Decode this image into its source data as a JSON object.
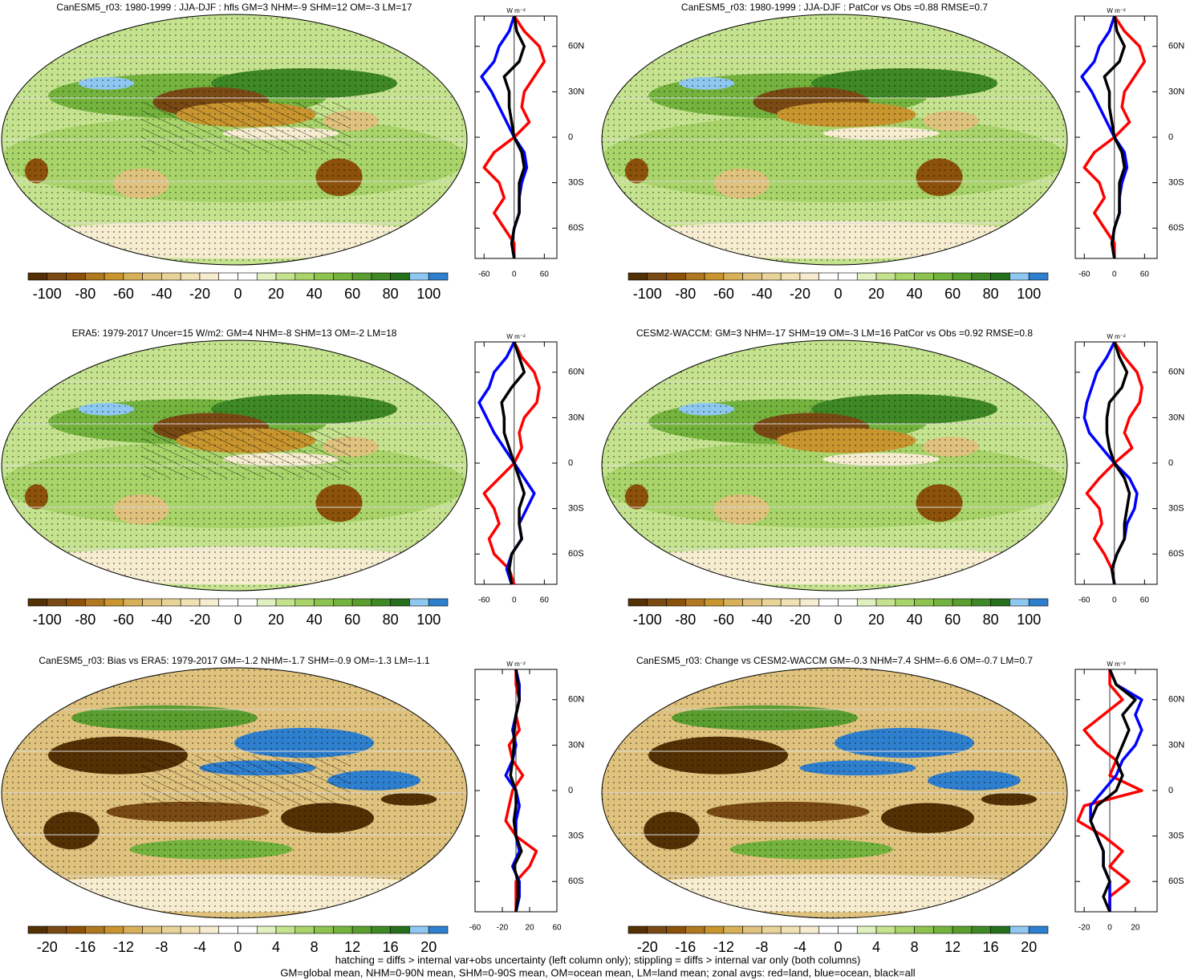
{
  "chart_data": [
    {
      "type": "line",
      "title": "CanESM5_r03: 1980-1999 : JJA-DJF : hfls GM=3 NHM=-9 SHM=12 OM=-3 LM=17",
      "x_label": "W m⁻²",
      "xlim": [
        -78,
        85
      ],
      "xticks": [
        -60,
        0,
        60
      ],
      "ylim": [
        -80,
        80
      ],
      "yticks": [
        {
          "value": 60,
          "label": "60N"
        },
        {
          "value": 30,
          "label": "30N"
        },
        0,
        {
          "value": -30,
          "label": "30S"
        },
        {
          "value": -60,
          "label": "60S"
        }
      ],
      "y": [
        -80,
        -70,
        -60,
        -50,
        -40,
        -30,
        -20,
        -10,
        0,
        10,
        20,
        30,
        40,
        50,
        60,
        70,
        80
      ],
      "series": [
        {
          "color": "#ff0000",
          "values": [
            0,
            0,
            -20,
            -40,
            -20,
            -30,
            -60,
            -40,
            0,
            30,
            15,
            20,
            40,
            60,
            50,
            20,
            0
          ]
        },
        {
          "color": "#0000ff",
          "values": [
            0,
            -5,
            0,
            10,
            10,
            15,
            25,
            20,
            0,
            -15,
            -30,
            -45,
            -65,
            -40,
            -30,
            -10,
            0
          ]
        },
        {
          "color": "#000000",
          "values": [
            0,
            -5,
            0,
            10,
            10,
            10,
            20,
            15,
            0,
            -5,
            -10,
            -10,
            -20,
            10,
            20,
            5,
            0
          ]
        }
      ],
      "colorbar": {
        "lim": [
          -110,
          110
        ],
        "ticks": [
          -100,
          -80,
          -60,
          -40,
          -20,
          0,
          20,
          40,
          60,
          80,
          100
        ],
        "colors": [
          "#543005",
          "#7a4a14",
          "#8c510a",
          "#b07820",
          "#c8952e",
          "#d8b05a",
          "#dfc27d",
          "#e8d498",
          "#f0e2b4",
          "#f6ecd0",
          "#ffffff",
          "#ffffff",
          "#e0f0c0",
          "#c5e38f",
          "#a8d46a",
          "#8dc450",
          "#74b33e",
          "#5a9e30",
          "#3f8826",
          "#26701e",
          "#8ec8f0",
          "#2f7fcf"
        ]
      }
    },
    {
      "type": "line",
      "title": "CanESM5_r03: 1980-1999 : JJA-DJF : PatCor vs Obs =0.88 RMSE=0.7",
      "x_label": "W m⁻²",
      "xlim": [
        -78,
        85
      ],
      "xticks": [
        -60,
        0,
        60
      ],
      "ylim": [
        -80,
        80
      ],
      "yticks": [
        {
          "value": 60,
          "label": "60N"
        },
        {
          "value": 30,
          "label": "30N"
        },
        0,
        {
          "value": -30,
          "label": "30S"
        },
        {
          "value": -60,
          "label": "60S"
        }
      ],
      "y": [
        -80,
        -70,
        -60,
        -50,
        -40,
        -30,
        -20,
        -10,
        0,
        10,
        20,
        30,
        40,
        50,
        60,
        70,
        80
      ],
      "series": [
        {
          "color": "#ff0000",
          "values": [
            0,
            0,
            -20,
            -40,
            -20,
            -30,
            -60,
            -40,
            0,
            30,
            15,
            20,
            40,
            60,
            50,
            20,
            0
          ]
        },
        {
          "color": "#0000ff",
          "values": [
            0,
            -5,
            0,
            10,
            10,
            15,
            25,
            20,
            0,
            -15,
            -30,
            -45,
            -65,
            -40,
            -30,
            -10,
            0
          ]
        },
        {
          "color": "#000000",
          "values": [
            0,
            -5,
            0,
            10,
            10,
            10,
            20,
            15,
            0,
            -5,
            -10,
            -10,
            -20,
            10,
            20,
            5,
            0
          ]
        }
      ],
      "colorbar": {
        "lim": [
          -110,
          110
        ],
        "ticks": [
          -100,
          -80,
          -60,
          -40,
          -20,
          0,
          20,
          40,
          60,
          80,
          100
        ],
        "colors": [
          "#543005",
          "#7a4a14",
          "#8c510a",
          "#b07820",
          "#c8952e",
          "#d8b05a",
          "#dfc27d",
          "#e8d498",
          "#f0e2b4",
          "#f6ecd0",
          "#ffffff",
          "#ffffff",
          "#e0f0c0",
          "#c5e38f",
          "#a8d46a",
          "#8dc450",
          "#74b33e",
          "#5a9e30",
          "#3f8826",
          "#26701e",
          "#8ec8f0",
          "#2f7fcf"
        ]
      }
    },
    {
      "type": "line",
      "title": "ERA5: 1979-2017 Uncer=15 W/m2: GM=4 NHM=-8 SHM=13 OM=-2 LM=18",
      "x_label": "W m⁻²",
      "xlim": [
        -78,
        85
      ],
      "xticks": [
        -60,
        0,
        60
      ],
      "ylim": [
        -80,
        80
      ],
      "yticks": [
        {
          "value": 60,
          "label": "60N"
        },
        {
          "value": 30,
          "label": "30N"
        },
        0,
        {
          "value": -30,
          "label": "30S"
        },
        {
          "value": -60,
          "label": "60S"
        }
      ],
      "y": [
        -80,
        -70,
        -60,
        -50,
        -40,
        -30,
        -20,
        -10,
        0,
        10,
        20,
        30,
        40,
        50,
        60,
        70,
        80
      ],
      "series": [
        {
          "color": "#ff0000",
          "values": [
            0,
            -10,
            -40,
            -50,
            -30,
            -40,
            -60,
            -30,
            0,
            15,
            10,
            20,
            45,
            50,
            40,
            15,
            0
          ]
        },
        {
          "color": "#0000ff",
          "values": [
            -5,
            -15,
            -5,
            15,
            10,
            25,
            40,
            20,
            0,
            -20,
            -40,
            -55,
            -70,
            -50,
            -40,
            -15,
            0
          ]
        },
        {
          "color": "#000000",
          "values": [
            -5,
            -10,
            -5,
            15,
            10,
            10,
            20,
            10,
            0,
            -10,
            -20,
            -20,
            -25,
            -5,
            20,
            10,
            0
          ]
        }
      ],
      "colorbar": {
        "lim": [
          -110,
          110
        ],
        "ticks": [
          -100,
          -80,
          -60,
          -40,
          -20,
          0,
          20,
          40,
          60,
          80,
          100
        ],
        "colors": [
          "#543005",
          "#7a4a14",
          "#8c510a",
          "#b07820",
          "#c8952e",
          "#d8b05a",
          "#dfc27d",
          "#e8d498",
          "#f0e2b4",
          "#f6ecd0",
          "#ffffff",
          "#ffffff",
          "#e0f0c0",
          "#c5e38f",
          "#a8d46a",
          "#8dc450",
          "#74b33e",
          "#5a9e30",
          "#3f8826",
          "#26701e",
          "#8ec8f0",
          "#2f7fcf"
        ]
      }
    },
    {
      "type": "line",
      "title": "CESM2-WACCM: GM=3 NHM=-17 SHM=19 OM=-3 LM=16 PatCor vs Obs =0.92 RMSE=0.8",
      "x_label": "W m⁻²",
      "xlim": [
        -78,
        85
      ],
      "xticks": [
        -60,
        0,
        60
      ],
      "ylim": [
        -80,
        80
      ],
      "yticks": [
        {
          "value": 60,
          "label": "60N"
        },
        {
          "value": 30,
          "label": "30N"
        },
        0,
        {
          "value": -30,
          "label": "30S"
        },
        {
          "value": -60,
          "label": "60S"
        }
      ],
      "y": [
        -80,
        -70,
        -60,
        -50,
        -40,
        -30,
        -20,
        -10,
        0,
        10,
        20,
        30,
        40,
        50,
        60,
        70,
        80
      ],
      "series": [
        {
          "color": "#ff0000",
          "values": [
            0,
            -5,
            -20,
            -40,
            -25,
            -30,
            -55,
            -30,
            0,
            35,
            20,
            30,
            50,
            55,
            45,
            20,
            0
          ]
        },
        {
          "color": "#0000ff",
          "values": [
            0,
            -5,
            5,
            20,
            25,
            40,
            45,
            30,
            0,
            -25,
            -50,
            -60,
            -55,
            -45,
            -35,
            -15,
            0
          ]
        },
        {
          "color": "#000000",
          "values": [
            0,
            -5,
            5,
            20,
            20,
            25,
            30,
            20,
            0,
            -10,
            -15,
            -15,
            -10,
            15,
            25,
            10,
            0
          ]
        }
      ],
      "colorbar": {
        "lim": [
          -110,
          110
        ],
        "ticks": [
          -100,
          -80,
          -60,
          -40,
          -20,
          0,
          20,
          40,
          60,
          80,
          100
        ],
        "colors": [
          "#543005",
          "#7a4a14",
          "#8c510a",
          "#b07820",
          "#c8952e",
          "#d8b05a",
          "#dfc27d",
          "#e8d498",
          "#f0e2b4",
          "#f6ecd0",
          "#ffffff",
          "#ffffff",
          "#e0f0c0",
          "#c5e38f",
          "#a8d46a",
          "#8dc450",
          "#74b33e",
          "#5a9e30",
          "#3f8826",
          "#26701e",
          "#8ec8f0",
          "#2f7fcf"
        ]
      }
    },
    {
      "type": "line",
      "title": "CanESM5_r03: Bias vs ERA5: 1979-2017 GM=-1.2 NHM=-1.7 SHM=-0.9 OM=-1.3 LM=-1.1",
      "x_label": "W m⁻²",
      "xlim": [
        -60,
        60
      ],
      "xticks": [
        -60,
        -20,
        20,
        60
      ],
      "ylim": [
        -80,
        80
      ],
      "yticks": [
        {
          "value": 60,
          "label": "60N"
        },
        {
          "value": 30,
          "label": "30N"
        },
        0,
        {
          "value": -30,
          "label": "30S"
        },
        {
          "value": -60,
          "label": "60S"
        }
      ],
      "y": [
        -80,
        -70,
        -60,
        -50,
        -40,
        -30,
        -20,
        -10,
        0,
        10,
        20,
        30,
        40,
        50,
        60,
        70,
        80
      ],
      "series": [
        {
          "color": "#ff0000",
          "values": [
            0,
            0,
            0,
            20,
            30,
            0,
            -15,
            -10,
            -5,
            10,
            -5,
            -10,
            5,
            0,
            5,
            0,
            0
          ]
        },
        {
          "color": "#0000ff",
          "values": [
            0,
            5,
            5,
            -5,
            5,
            0,
            0,
            5,
            0,
            -15,
            -5,
            0,
            -5,
            0,
            5,
            5,
            0
          ]
        },
        {
          "color": "#000000",
          "values": [
            0,
            3,
            3,
            -3,
            8,
            0,
            -3,
            0,
            0,
            -8,
            -5,
            -3,
            -3,
            0,
            5,
            3,
            0
          ]
        }
      ],
      "colorbar": {
        "lim": [
          -22,
          22
        ],
        "ticks": [
          -20,
          -16,
          -12,
          -8,
          -4,
          0,
          4,
          8,
          12,
          16,
          20
        ],
        "colors": [
          "#543005",
          "#7a4a14",
          "#8c510a",
          "#b07820",
          "#c8952e",
          "#d8b05a",
          "#dfc27d",
          "#e8d498",
          "#f0e2b4",
          "#f6ecd0",
          "#ffffff",
          "#ffffff",
          "#e0f0c0",
          "#c5e38f",
          "#a8d46a",
          "#8dc450",
          "#74b33e",
          "#5a9e30",
          "#3f8826",
          "#26701e",
          "#8ec8f0",
          "#2f7fcf"
        ]
      }
    },
    {
      "type": "line",
      "title": "CanESM5_r03: Change vs CESM2-WACCM GM=-0.3 NHM=7.4 SHM=-6.6 OM=-0.7 LM=0.7",
      "x_label": "W m⁻²",
      "xlim": [
        -27,
        37
      ],
      "xticks": [
        -20,
        0,
        20
      ],
      "ylim": [
        -80,
        80
      ],
      "yticks": [
        {
          "value": 60,
          "label": "60N"
        },
        {
          "value": 30,
          "label": "30N"
        },
        0,
        {
          "value": -30,
          "label": "30S"
        },
        {
          "value": -60,
          "label": "60S"
        }
      ],
      "y": [
        -80,
        -70,
        -60,
        -50,
        -40,
        -30,
        -20,
        -10,
        0,
        10,
        20,
        30,
        40,
        50,
        60,
        70,
        80
      ],
      "series": [
        {
          "color": "#ff0000",
          "values": [
            0,
            0,
            15,
            0,
            10,
            -5,
            -25,
            -20,
            25,
            0,
            5,
            -10,
            -20,
            -5,
            10,
            0,
            0
          ]
        },
        {
          "color": "#0000ff",
          "values": [
            0,
            0,
            0,
            -5,
            -5,
            -10,
            -15,
            -15,
            -5,
            5,
            10,
            20,
            25,
            20,
            25,
            5,
            0
          ]
        },
        {
          "color": "#000000",
          "values": [
            0,
            -5,
            0,
            -5,
            -5,
            -10,
            -15,
            -10,
            5,
            10,
            5,
            10,
            15,
            10,
            20,
            5,
            0
          ]
        }
      ],
      "colorbar": {
        "lim": [
          -22,
          22
        ],
        "ticks": [
          -20,
          -16,
          -12,
          -8,
          -4,
          0,
          4,
          8,
          12,
          16,
          20
        ],
        "colors": [
          "#543005",
          "#7a4a14",
          "#8c510a",
          "#b07820",
          "#c8952e",
          "#d8b05a",
          "#dfc27d",
          "#e8d498",
          "#f0e2b4",
          "#f6ecd0",
          "#ffffff",
          "#ffffff",
          "#e0f0c0",
          "#c5e38f",
          "#a8d46a",
          "#8dc450",
          "#74b33e",
          "#5a9e30",
          "#3f8826",
          "#26701e",
          "#8ec8f0",
          "#2f7fcf"
        ]
      }
    }
  ],
  "footer": [
    "hatching = diffs > internal var+obs uncertainty (left column only); stippling = diffs > internal var only (both columns)",
    "GM=global mean, NHM=0-90N mean, SHM=0-90S mean, OM=ocean mean, LM=land mean; zonal avgs: red=land, blue=ocean, black=all"
  ]
}
